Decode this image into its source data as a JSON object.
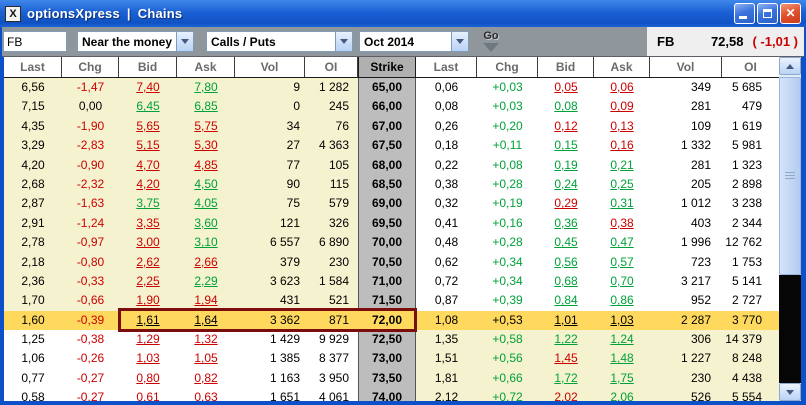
{
  "window": {
    "icon_glyph": "X",
    "title_app": "optionsXpress",
    "title_separator": "|",
    "title_page": "Chains"
  },
  "toolbar": {
    "symbol_value": "FB",
    "range_select": "Near the money",
    "type_select": "Calls / Puts",
    "expiry_select": "Oct 2014",
    "go_label": "Go",
    "quote": {
      "symbol": "FB",
      "last": "72,58",
      "change": "( -1,01 )"
    }
  },
  "colors": {
    "up_green": "#00A13A",
    "down_red": "#CC0000",
    "itm_yellow": "#F5F2CF",
    "highlight_orange": "#FFD95E",
    "strike_gray": "#BDBDBD",
    "selection_maroon": "#7A0E0E",
    "titlebar_blue": "#1B61D6"
  },
  "table": {
    "call_headers": [
      "Last",
      "Chg",
      "Bid",
      "Ask",
      "Vol",
      "OI"
    ],
    "strike_header": "Strike",
    "put_headers": [
      "Last",
      "Chg",
      "Bid",
      "Ask",
      "Vol",
      "OI"
    ],
    "rows": [
      {
        "strike": "65,00",
        "zone": "upper",
        "call": {
          "last": "6,56",
          "chg": "-1,47",
          "chg_c": "red",
          "bid": "7,40",
          "bid_c": "red",
          "ask": "7,80",
          "ask_c": "green",
          "vol": "9",
          "oi": "1 282"
        },
        "put": {
          "last": "0,06",
          "chg": "+0,03",
          "chg_c": "green",
          "bid": "0,05",
          "bid_c": "red",
          "ask": "0,06",
          "ask_c": "red",
          "vol": "349",
          "oi": "5 685"
        }
      },
      {
        "strike": "66,00",
        "zone": "upper",
        "call": {
          "last": "7,15",
          "chg": "0,00",
          "chg_c": "black",
          "bid": "6,45",
          "bid_c": "green",
          "ask": "6,85",
          "ask_c": "green",
          "vol": "0",
          "oi": "245"
        },
        "put": {
          "last": "0,08",
          "chg": "+0,03",
          "chg_c": "green",
          "bid": "0,08",
          "bid_c": "green",
          "ask": "0,09",
          "ask_c": "red",
          "vol": "281",
          "oi": "479"
        }
      },
      {
        "strike": "67,00",
        "zone": "upper",
        "call": {
          "last": "4,35",
          "chg": "-1,90",
          "chg_c": "red",
          "bid": "5,65",
          "bid_c": "red",
          "ask": "5,75",
          "ask_c": "red",
          "vol": "34",
          "oi": "76"
        },
        "put": {
          "last": "0,26",
          "chg": "+0,20",
          "chg_c": "green",
          "bid": "0,12",
          "bid_c": "red",
          "ask": "0,13",
          "ask_c": "red",
          "vol": "109",
          "oi": "1 619"
        }
      },
      {
        "strike": "67,50",
        "zone": "upper",
        "call": {
          "last": "3,29",
          "chg": "-2,83",
          "chg_c": "red",
          "bid": "5,15",
          "bid_c": "red",
          "ask": "5,30",
          "ask_c": "red",
          "vol": "27",
          "oi": "4 363"
        },
        "put": {
          "last": "0,18",
          "chg": "+0,11",
          "chg_c": "green",
          "bid": "0,15",
          "bid_c": "green",
          "ask": "0,16",
          "ask_c": "red",
          "vol": "1 332",
          "oi": "5 981"
        }
      },
      {
        "strike": "68,00",
        "zone": "upper",
        "call": {
          "last": "4,20",
          "chg": "-0,90",
          "chg_c": "red",
          "bid": "4,70",
          "bid_c": "red",
          "ask": "4,85",
          "ask_c": "red",
          "vol": "77",
          "oi": "105"
        },
        "put": {
          "last": "0,22",
          "chg": "+0,08",
          "chg_c": "green",
          "bid": "0,19",
          "bid_c": "green",
          "ask": "0,21",
          "ask_c": "green",
          "vol": "281",
          "oi": "1 323"
        }
      },
      {
        "strike": "68,50",
        "zone": "upper",
        "call": {
          "last": "2,68",
          "chg": "-2,32",
          "chg_c": "red",
          "bid": "4,20",
          "bid_c": "red",
          "ask": "4,50",
          "ask_c": "green",
          "vol": "90",
          "oi": "115"
        },
        "put": {
          "last": "0,38",
          "chg": "+0,28",
          "chg_c": "green",
          "bid": "0,24",
          "bid_c": "green",
          "ask": "0,25",
          "ask_c": "green",
          "vol": "205",
          "oi": "2 898"
        }
      },
      {
        "strike": "69,00",
        "zone": "upper",
        "call": {
          "last": "2,87",
          "chg": "-1,63",
          "chg_c": "red",
          "bid": "3,75",
          "bid_c": "green",
          "ask": "4,05",
          "ask_c": "green",
          "vol": "75",
          "oi": "579"
        },
        "put": {
          "last": "0,32",
          "chg": "+0,19",
          "chg_c": "green",
          "bid": "0,29",
          "bid_c": "red",
          "ask": "0,31",
          "ask_c": "green",
          "vol": "1 012",
          "oi": "3 238"
        }
      },
      {
        "strike": "69,50",
        "zone": "upper",
        "call": {
          "last": "2,91",
          "chg": "-1,24",
          "chg_c": "red",
          "bid": "3,35",
          "bid_c": "red",
          "ask": "3,60",
          "ask_c": "green",
          "vol": "121",
          "oi": "326"
        },
        "put": {
          "last": "0,41",
          "chg": "+0,16",
          "chg_c": "green",
          "bid": "0,36",
          "bid_c": "green",
          "ask": "0,38",
          "ask_c": "red",
          "vol": "403",
          "oi": "2 344"
        }
      },
      {
        "strike": "70,00",
        "zone": "upper",
        "call": {
          "last": "2,78",
          "chg": "-0,97",
          "chg_c": "red",
          "bid": "3,00",
          "bid_c": "red",
          "ask": "3,10",
          "ask_c": "green",
          "vol": "6 557",
          "oi": "6 890"
        },
        "put": {
          "last": "0,48",
          "chg": "+0,28",
          "chg_c": "green",
          "bid": "0,45",
          "bid_c": "green",
          "ask": "0,47",
          "ask_c": "green",
          "vol": "1 996",
          "oi": "12 762"
        }
      },
      {
        "strike": "70,50",
        "zone": "upper",
        "call": {
          "last": "2,18",
          "chg": "-0,80",
          "chg_c": "red",
          "bid": "2,62",
          "bid_c": "red",
          "ask": "2,66",
          "ask_c": "red",
          "vol": "379",
          "oi": "230"
        },
        "put": {
          "last": "0,62",
          "chg": "+0,34",
          "chg_c": "green",
          "bid": "0,56",
          "bid_c": "green",
          "ask": "0,57",
          "ask_c": "green",
          "vol": "723",
          "oi": "1 753"
        }
      },
      {
        "strike": "71,00",
        "zone": "upper",
        "call": {
          "last": "2,36",
          "chg": "-0,33",
          "chg_c": "red",
          "bid": "2,25",
          "bid_c": "red",
          "ask": "2,29",
          "ask_c": "green",
          "vol": "3 623",
          "oi": "1 584"
        },
        "put": {
          "last": "0,72",
          "chg": "+0,34",
          "chg_c": "green",
          "bid": "0,68",
          "bid_c": "green",
          "ask": "0,70",
          "ask_c": "green",
          "vol": "3 217",
          "oi": "5 141"
        }
      },
      {
        "strike": "71,50",
        "zone": "upper",
        "call": {
          "last": "1,70",
          "chg": "-0,66",
          "chg_c": "red",
          "bid": "1,90",
          "bid_c": "red",
          "ask": "1,94",
          "ask_c": "red",
          "vol": "431",
          "oi": "521"
        },
        "put": {
          "last": "0,87",
          "chg": "+0,39",
          "chg_c": "green",
          "bid": "0,84",
          "bid_c": "green",
          "ask": "0,86",
          "ask_c": "green",
          "vol": "952",
          "oi": "2 727"
        }
      },
      {
        "strike": "72,00",
        "zone": "highlight",
        "call": {
          "last": "1,60",
          "chg": "-0,39",
          "chg_c": "red",
          "bid": "1,61",
          "bid_c": "black",
          "ask": "1,64",
          "ask_c": "black",
          "vol": "3 362",
          "oi": "871"
        },
        "put": {
          "last": "1,08",
          "chg": "+0,53",
          "chg_c": "black",
          "bid": "1,01",
          "bid_c": "black",
          "ask": "1,03",
          "ask_c": "black",
          "vol": "2 287",
          "oi": "3 770"
        }
      },
      {
        "strike": "72,50",
        "zone": "lower",
        "call": {
          "last": "1,25",
          "chg": "-0,38",
          "chg_c": "red",
          "bid": "1,29",
          "bid_c": "red",
          "ask": "1,32",
          "ask_c": "red",
          "vol": "1 429",
          "oi": "9 929"
        },
        "put": {
          "last": "1,35",
          "chg": "+0,58",
          "chg_c": "green",
          "bid": "1,22",
          "bid_c": "green",
          "ask": "1,24",
          "ask_c": "green",
          "vol": "306",
          "oi": "14 379"
        }
      },
      {
        "strike": "73,00",
        "zone": "lower",
        "call": {
          "last": "1,06",
          "chg": "-0,26",
          "chg_c": "red",
          "bid": "1,03",
          "bid_c": "red",
          "ask": "1,05",
          "ask_c": "red",
          "vol": "1 385",
          "oi": "8 377"
        },
        "put": {
          "last": "1,51",
          "chg": "+0,56",
          "chg_c": "green",
          "bid": "1,45",
          "bid_c": "red",
          "ask": "1,48",
          "ask_c": "green",
          "vol": "1 227",
          "oi": "8 248"
        }
      },
      {
        "strike": "73,50",
        "zone": "lower",
        "call": {
          "last": "0,77",
          "chg": "-0,27",
          "chg_c": "red",
          "bid": "0,80",
          "bid_c": "red",
          "ask": "0,82",
          "ask_c": "red",
          "vol": "1 163",
          "oi": "3 950"
        },
        "put": {
          "last": "1,81",
          "chg": "+0,66",
          "chg_c": "green",
          "bid": "1,72",
          "bid_c": "green",
          "ask": "1,75",
          "ask_c": "green",
          "vol": "230",
          "oi": "4 438"
        }
      },
      {
        "strike": "74,00",
        "zone": "lower",
        "call": {
          "last": "0,58",
          "chg": "-0,27",
          "chg_c": "red",
          "bid": "0,61",
          "bid_c": "red",
          "ask": "0,63",
          "ask_c": "red",
          "vol": "1 651",
          "oi": "4 061"
        },
        "put": {
          "last": "2,12",
          "chg": "+0,72",
          "chg_c": "green",
          "bid": "2,02",
          "bid_c": "red",
          "ask": "2,06",
          "ask_c": "green",
          "vol": "526",
          "oi": "5 554"
        }
      }
    ]
  }
}
